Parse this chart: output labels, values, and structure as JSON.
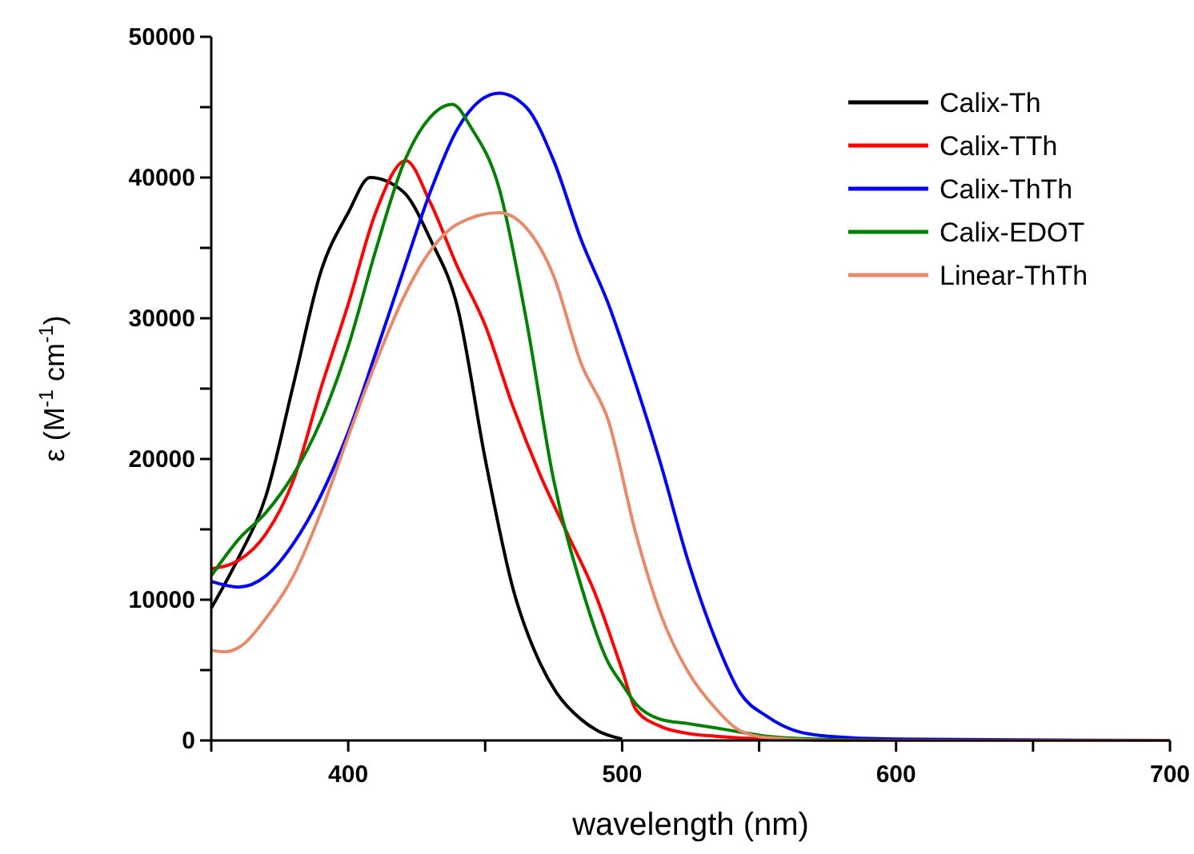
{
  "chart_data": {
    "type": "line",
    "xlabel": "wavelength (nm)",
    "ylabel": "ε (M$^{-1}$ cm$^{-1}$)",
    "xlim": [
      350,
      700
    ],
    "xticks": [
      {
        "value": 350,
        "label": null
      },
      400,
      {
        "value": 450,
        "label": null
      },
      500,
      {
        "value": 550,
        "label": null
      },
      600,
      {
        "value": 650,
        "label": null
      },
      700
    ],
    "ylim": [
      0,
      50000
    ],
    "yticks": [
      0,
      {
        "value": 5000,
        "label": null
      },
      10000,
      {
        "value": 15000,
        "label": null
      },
      20000,
      {
        "value": 25000,
        "label": null
      },
      30000,
      {
        "value": 35000,
        "label": null
      },
      40000,
      {
        "value": 45000,
        "label": null
      },
      50000
    ],
    "grid": false,
    "legend": "top right",
    "marker": "none",
    "line_style": "solid",
    "series": [
      {
        "name": "Calix-Th",
        "color": "#000000",
        "x": [
          350,
          360,
          370,
          380,
          390,
          400,
          408,
          420,
          430,
          440,
          450,
          460,
          470,
          476,
          485,
          491,
          500
        ],
        "values": [
          9400,
          13000,
          17400,
          25300,
          33300,
          37500,
          40000,
          39000,
          35600,
          30700,
          20000,
          10900,
          5500,
          3400,
          1500,
          700,
          100
        ]
      },
      {
        "name": "Calix-TTh",
        "color": "#ff0000",
        "x": [
          350,
          360,
          370,
          380,
          390,
          400,
          410,
          421,
          430,
          440,
          450,
          460,
          470,
          480,
          490,
          500,
          505,
          514,
          524,
          534,
          553,
          600,
          700
        ],
        "values": [
          12200,
          12800,
          14700,
          18500,
          25000,
          31000,
          37500,
          41200,
          38200,
          33600,
          29500,
          23800,
          18900,
          14700,
          10500,
          5000,
          2200,
          1000,
          500,
          300,
          100,
          0,
          0
        ]
      },
      {
        "name": "Calix-ThTh",
        "color": "#0000ff",
        "x": [
          350,
          360,
          370,
          380,
          390,
          400,
          410,
          420,
          430,
          440,
          455,
          465,
          475,
          485,
          495,
          505,
          514,
          524,
          534,
          543,
          553,
          563,
          575,
          600,
          700
        ],
        "values": [
          11300,
          10900,
          11700,
          14000,
          17400,
          21900,
          27500,
          33300,
          39000,
          43500,
          46000,
          45000,
          41200,
          35600,
          31000,
          25300,
          19700,
          12800,
          7200,
          3400,
          1700,
          700,
          300,
          100,
          0
        ]
      },
      {
        "name": "Calix-EDOT",
        "color": "#008000",
        "x": [
          350,
          360,
          370,
          380,
          390,
          400,
          410,
          420,
          430,
          438,
          445,
          455,
          465,
          475,
          485,
          495,
          500,
          505,
          514,
          524,
          534,
          543,
          553,
          570,
          600,
          700
        ],
        "values": [
          11700,
          14300,
          16200,
          18900,
          22700,
          28000,
          34800,
          40900,
          44300,
          45200,
          43500,
          39300,
          29900,
          18500,
          11000,
          5500,
          4000,
          2600,
          1500,
          1200,
          900,
          600,
          300,
          100,
          0,
          0
        ]
      },
      {
        "name": "Linear-ThTh",
        "color": "#e8896a",
        "x": [
          350,
          355,
          360,
          370,
          380,
          390,
          400,
          410,
          420,
          430,
          440,
          455,
          465,
          475,
          485,
          495,
          505,
          514,
          524,
          534,
          543,
          553,
          580,
          700
        ],
        "values": [
          6400,
          6300,
          6600,
          8700,
          11700,
          16200,
          21600,
          26800,
          31400,
          34800,
          36700,
          37500,
          36400,
          33000,
          26800,
          22700,
          14700,
          9000,
          4900,
          2300,
          700,
          200,
          0,
          0
        ]
      }
    ]
  }
}
